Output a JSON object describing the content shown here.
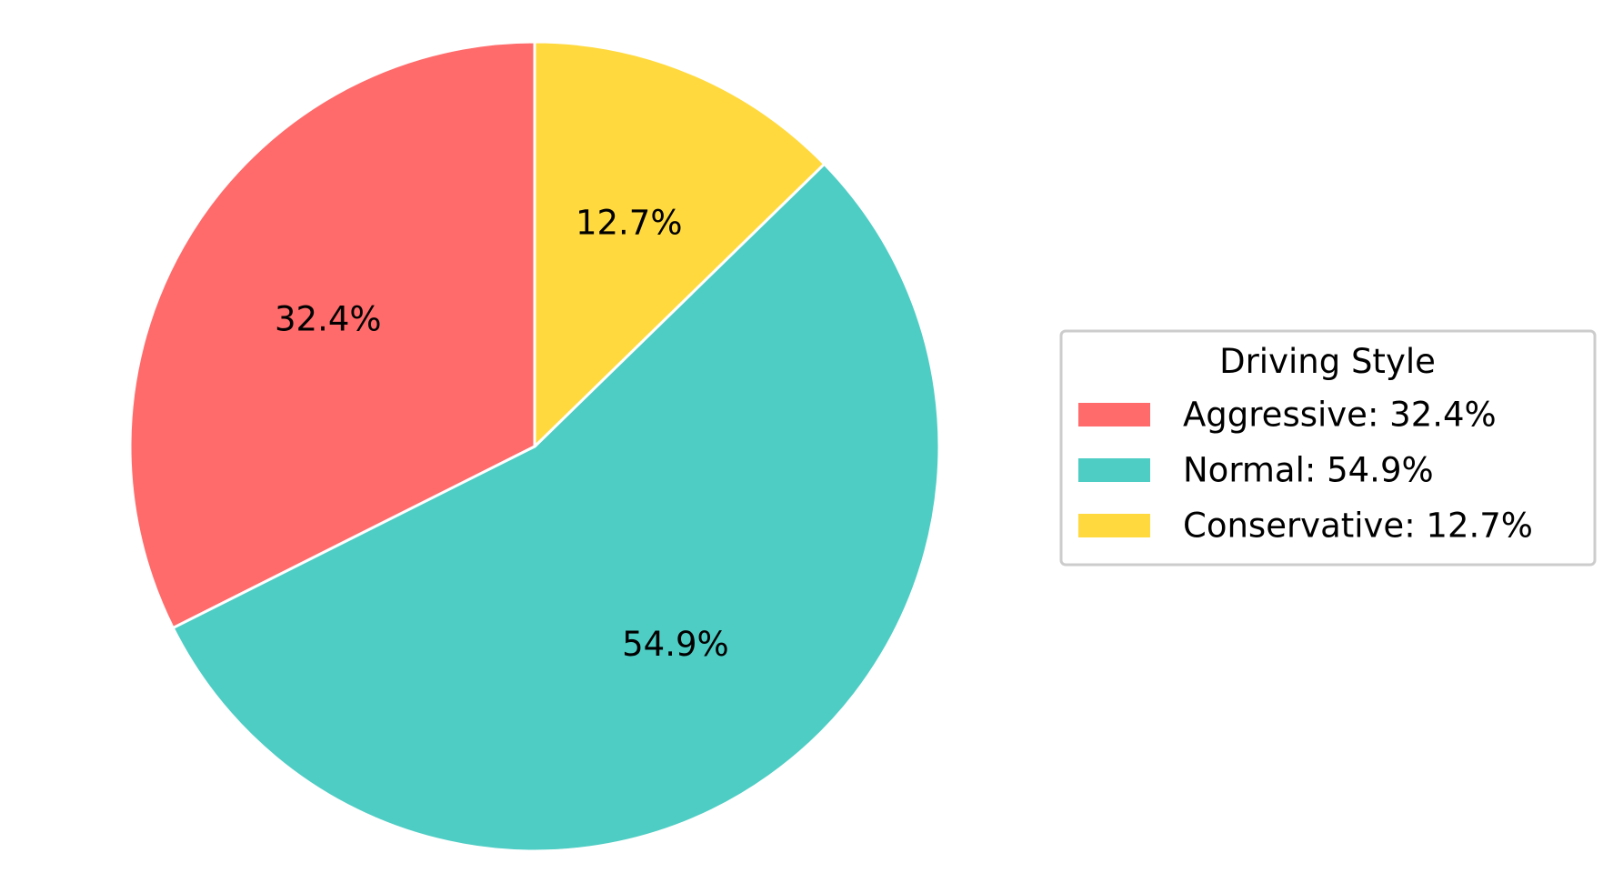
{
  "chart_data": {
    "type": "pie",
    "title": "",
    "slices": [
      {
        "label": "Aggressive",
        "value": 32.4,
        "display": "32.4%",
        "legend_text": "Aggressive: 32.4%",
        "color": "#FF6B6B"
      },
      {
        "label": "Normal",
        "value": 54.9,
        "display": "54.9%",
        "legend_text": "Normal: 54.9%",
        "color": "#4ECDC4"
      },
      {
        "label": "Conservative",
        "value": 12.7,
        "display": "12.7%",
        "legend_text": "Conservative: 12.7%",
        "color": "#FFD93D"
      }
    ],
    "start_angle_deg": 90,
    "direction": "counterclockwise",
    "legend": {
      "title": "Driving Style",
      "placement": "center-right"
    }
  }
}
